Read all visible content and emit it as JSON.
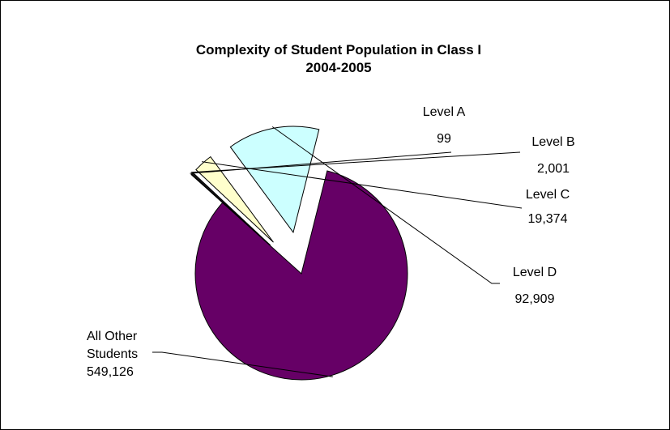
{
  "chart_data": {
    "type": "pie",
    "title": "Complexity of Student Population in Class I",
    "subtitle": "2004-2005",
    "legend": "none",
    "slices": [
      {
        "label": "Level A",
        "value": 99,
        "value_label": "99",
        "color": "#7a7aa8",
        "exploded": true
      },
      {
        "label": "Level B",
        "value": 2001,
        "value_label": "2,001",
        "color": "#1a1a1a",
        "exploded": true
      },
      {
        "label": "Level C",
        "value": 19374,
        "value_label": "19,374",
        "color": "#ffffcc",
        "exploded": true
      },
      {
        "label": "Level D",
        "value": 92909,
        "value_label": "92,909",
        "color": "#ccffff",
        "exploded": true
      },
      {
        "label": "All Other Students",
        "label_lines": [
          "All Other",
          "Students"
        ],
        "value": 549126,
        "value_label": "549,126",
        "color": "#660066",
        "exploded": false
      }
    ]
  }
}
